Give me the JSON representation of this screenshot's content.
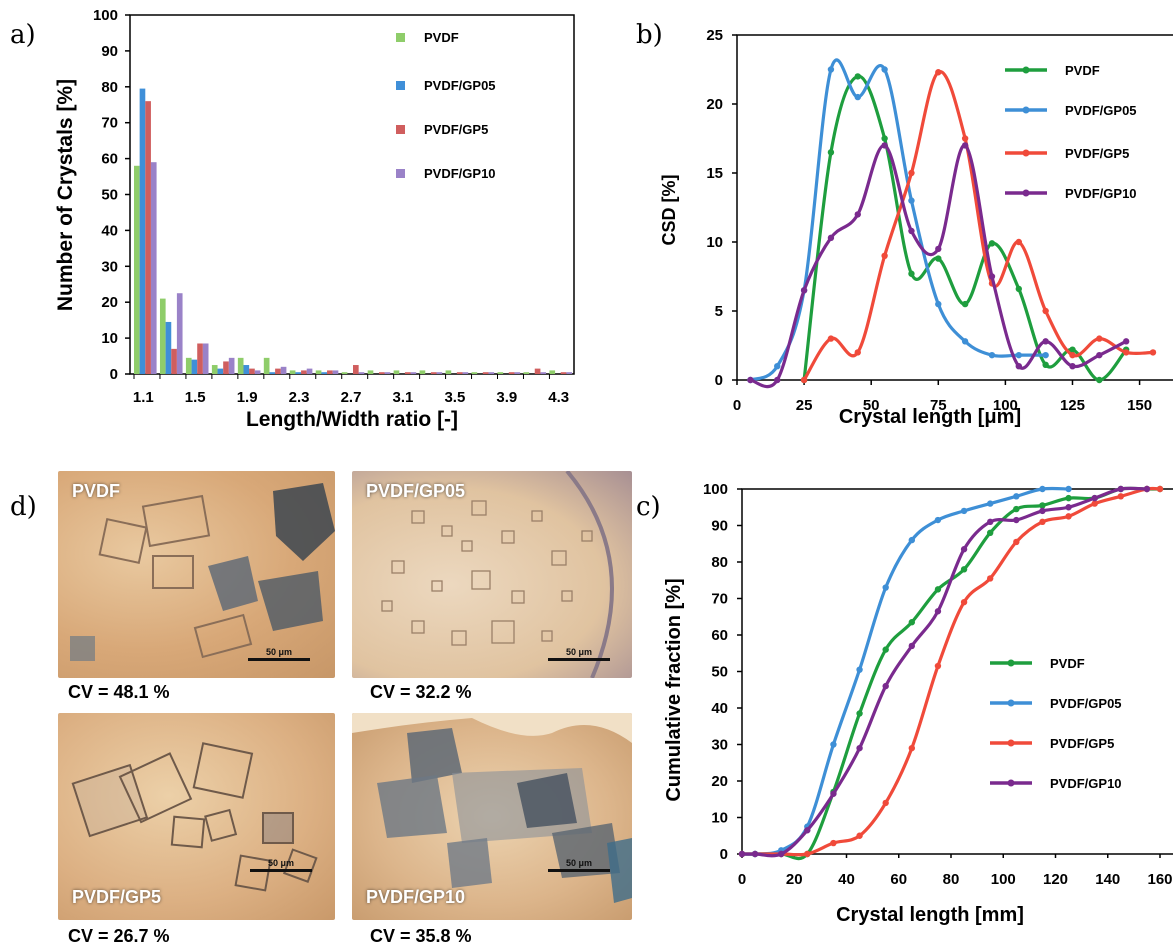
{
  "panel_letters": {
    "a": "a)",
    "b": "b)",
    "c": "c)",
    "d": "d)"
  },
  "colors": {
    "PVDF": "#1e9e3e",
    "PVDF/GP05": "#3e8fd6",
    "PVDF/GP5": "#f04a3a",
    "PVDF/GP10": "#7a2a8e",
    "bar_PVDF": "#8fcd6a",
    "bar_PVDF/GP05": "#3f8fd8",
    "bar_PVDF/GP5": "#d05e5e",
    "bar_PVDF/GP10": "#9a82c8"
  },
  "chart_data": [
    {
      "id": "a",
      "type": "bar",
      "xlabel": "Length/Width ratio [-]",
      "ylabel": "Number of Crystals [%]",
      "ylim": [
        0,
        100
      ],
      "yticks": [
        0,
        10,
        20,
        30,
        40,
        50,
        60,
        70,
        80,
        90,
        100
      ],
      "categories": [
        "1.1",
        "1.3",
        "1.5",
        "1.7",
        "1.9",
        "2.1",
        "2.3",
        "2.5",
        "2.7",
        "2.9",
        "3.1",
        "3.3",
        "3.5",
        "3.7",
        "3.9",
        "4.1",
        "4.3"
      ],
      "category_labels": [
        "1.1",
        "",
        "1.5",
        "",
        "1.9",
        "",
        "2.3",
        "",
        "2.7",
        "",
        "3.1",
        "",
        "3.5",
        "",
        "3.9",
        "",
        "4.3"
      ],
      "legend_placement": "top-right",
      "grid": false,
      "series": [
        {
          "name": "PVDF",
          "values": [
            58,
            21,
            4.5,
            2.5,
            4.5,
            4.5,
            1,
            1,
            0.5,
            1,
            1,
            1,
            1,
            0.5,
            0.5,
            0.5,
            1
          ]
        },
        {
          "name": "PVDF/GP05",
          "values": [
            79.5,
            14.5,
            4,
            1.5,
            2.5,
            0.5,
            0.5,
            0.5,
            0,
            0,
            0,
            0,
            0,
            0,
            0,
            0,
            0
          ]
        },
        {
          "name": "PVDF/GP5",
          "values": [
            76,
            7,
            8.5,
            3.5,
            1.5,
            1.5,
            1,
            1,
            2.5,
            0.5,
            0.5,
            0.5,
            0.5,
            0.5,
            0.5,
            1.5,
            0.5
          ]
        },
        {
          "name": "PVDF/GP10",
          "values": [
            59,
            22.5,
            8.5,
            4.5,
            1,
            2,
            1.5,
            1,
            0.5,
            0.5,
            0.5,
            0.5,
            0.5,
            0.5,
            0.5,
            0.5,
            0.5
          ]
        }
      ]
    },
    {
      "id": "b",
      "type": "line",
      "xlabel": "Crystal length [μm]",
      "ylabel": "CSD [%]",
      "xlim": [
        0,
        155
      ],
      "ylim": [
        0,
        25
      ],
      "xticks": [
        0,
        25,
        50,
        75,
        100,
        125,
        150
      ],
      "yticks": [
        0,
        5,
        10,
        15,
        20,
        25
      ],
      "legend_placement": "top-right",
      "grid": false,
      "series": [
        {
          "name": "PVDF",
          "points": [
            [
              25,
              0
            ],
            [
              35,
              16.5
            ],
            [
              45,
              22
            ],
            [
              55,
              17.5
            ],
            [
              65,
              7.7
            ],
            [
              75,
              8.8
            ],
            [
              85,
              5.5
            ],
            [
              95,
              9.9
            ],
            [
              105,
              6.6
            ],
            [
              115,
              1.1
            ],
            [
              125,
              2.2
            ],
            [
              135,
              0
            ],
            [
              145,
              2.2
            ]
          ]
        },
        {
          "name": "PVDF/GP05",
          "points": [
            [
              5,
              0
            ],
            [
              15,
              1
            ],
            [
              25,
              6.5
            ],
            [
              35,
              22.5
            ],
            [
              45,
              20.5
            ],
            [
              55,
              22.5
            ],
            [
              65,
              13
            ],
            [
              75,
              5.5
            ],
            [
              85,
              2.8
            ],
            [
              95,
              1.8
            ],
            [
              105,
              1.8
            ],
            [
              115,
              1.8
            ]
          ]
        },
        {
          "name": "PVDF/GP5",
          "points": [
            [
              25,
              0
            ],
            [
              35,
              3
            ],
            [
              45,
              2
            ],
            [
              55,
              9
            ],
            [
              65,
              15
            ],
            [
              75,
              22.3
            ],
            [
              85,
              17.5
            ],
            [
              95,
              7
            ],
            [
              105,
              10
            ],
            [
              115,
              5
            ],
            [
              125,
              1.8
            ],
            [
              135,
              3
            ],
            [
              145,
              2
            ],
            [
              155,
              2
            ]
          ]
        },
        {
          "name": "PVDF/GP10",
          "points": [
            [
              5,
              0
            ],
            [
              15,
              0
            ],
            [
              25,
              6.5
            ],
            [
              35,
              10.3
            ],
            [
              45,
              12
            ],
            [
              55,
              17
            ],
            [
              65,
              10.8
            ],
            [
              75,
              9.5
            ],
            [
              85,
              17
            ],
            [
              95,
              7.5
            ],
            [
              105,
              1
            ],
            [
              115,
              2.8
            ],
            [
              125,
              1
            ],
            [
              135,
              1.8
            ],
            [
              145,
              2.8
            ]
          ]
        }
      ]
    },
    {
      "id": "c",
      "type": "line",
      "xlabel": "Crystal length [mm]",
      "ylabel": "Cumulative fraction [%]",
      "xlim": [
        0,
        160
      ],
      "ylim": [
        0,
        100
      ],
      "xticks": [
        0,
        20,
        40,
        60,
        80,
        100,
        120,
        140,
        160
      ],
      "yticks": [
        0,
        10,
        20,
        30,
        40,
        50,
        60,
        70,
        80,
        90,
        100
      ],
      "legend_placement": "center-right",
      "grid": false,
      "series": [
        {
          "name": "PVDF",
          "points": [
            [
              0,
              0
            ],
            [
              5,
              0
            ],
            [
              15,
              0
            ],
            [
              25,
              0
            ],
            [
              35,
              17
            ],
            [
              45,
              38.5
            ],
            [
              55,
              56
            ],
            [
              65,
              63.5
            ],
            [
              75,
              72.5
            ],
            [
              85,
              78
            ],
            [
              95,
              88
            ],
            [
              105,
              94.5
            ],
            [
              115,
              95.5
            ],
            [
              125,
              97.5
            ],
            [
              135,
              97.5
            ],
            [
              145,
              100
            ],
            [
              155,
              100
            ],
            [
              160,
              100
            ]
          ]
        },
        {
          "name": "PVDF/GP05",
          "points": [
            [
              0,
              0
            ],
            [
              5,
              0
            ],
            [
              15,
              1
            ],
            [
              25,
              7.5
            ],
            [
              35,
              30
            ],
            [
              45,
              50.5
            ],
            [
              55,
              73
            ],
            [
              65,
              86
            ],
            [
              75,
              91.5
            ],
            [
              85,
              94
            ],
            [
              95,
              96
            ],
            [
              105,
              98
            ],
            [
              115,
              100
            ],
            [
              125,
              100
            ]
          ]
        },
        {
          "name": "PVDF/GP5",
          "points": [
            [
              0,
              0
            ],
            [
              15,
              0
            ],
            [
              25,
              0
            ],
            [
              35,
              3
            ],
            [
              45,
              5
            ],
            [
              55,
              14
            ],
            [
              65,
              29
            ],
            [
              75,
              51.5
            ],
            [
              85,
              69
            ],
            [
              95,
              75.5
            ],
            [
              105,
              85.5
            ],
            [
              115,
              91
            ],
            [
              125,
              92.5
            ],
            [
              135,
              96
            ],
            [
              145,
              98
            ],
            [
              155,
              100
            ],
            [
              160,
              100
            ]
          ]
        },
        {
          "name": "PVDF/GP10",
          "points": [
            [
              0,
              0
            ],
            [
              5,
              0
            ],
            [
              15,
              0
            ],
            [
              25,
              6.5
            ],
            [
              35,
              16.5
            ],
            [
              45,
              29
            ],
            [
              55,
              46
            ],
            [
              65,
              57
            ],
            [
              75,
              66.5
            ],
            [
              85,
              83.5
            ],
            [
              95,
              91
            ],
            [
              105,
              91.5
            ],
            [
              115,
              94
            ],
            [
              125,
              95
            ],
            [
              135,
              97.5
            ],
            [
              145,
              100
            ],
            [
              155,
              100
            ]
          ]
        }
      ]
    }
  ],
  "micrographs": [
    {
      "label": "PVDF",
      "cv": "CV = 48.1 %",
      "scale": "50 μm"
    },
    {
      "label": "PVDF/GP05",
      "cv": "CV = 32.2 %",
      "scale": "50 μm"
    },
    {
      "label": "PVDF/GP5",
      "cv": "CV = 26.7 %",
      "scale": "50 μm"
    },
    {
      "label": "PVDF/GP10",
      "cv": "CV = 35.8 %",
      "scale": "50 μm"
    }
  ]
}
